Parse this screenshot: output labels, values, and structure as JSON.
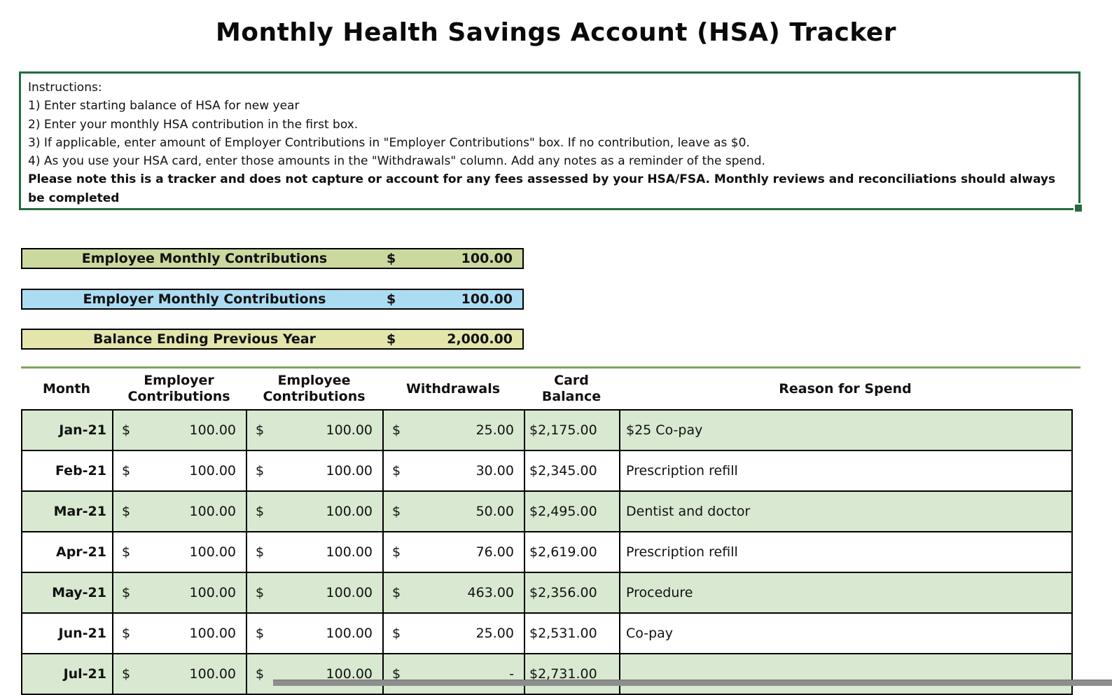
{
  "title": "Monthly Health Savings Account (HSA) Tracker",
  "instructions": {
    "lines": [
      "Instructions:",
      "1) Enter starting balance of HSA for new year",
      "2) Enter your monthly HSA contribution in the first box.",
      "3) If applicable, enter amount of Employer Contributions in \"Employer Contributions\" box. If no contribution, leave as $0.",
      "4) As you use your HSA card, enter those amounts in the \"Withdrawals\" column. Add any notes as a reminder of the spend."
    ],
    "note": "Please note this is a tracker and does not capture or account for any fees assessed by your HSA/FSA. Monthly reviews and reconciliations should always be completed"
  },
  "summary_boxes": [
    {
      "label": "Employee Monthly Contributions",
      "currency": "$",
      "value": "100.00",
      "color_key": "box_green"
    },
    {
      "label": "Employer Monthly Contributions",
      "currency": "$",
      "value": "100.00",
      "color_key": "box_blue"
    },
    {
      "label": "Balance Ending Previous Year",
      "currency": "$",
      "value": "2,000.00",
      "color_key": "box_yellow"
    }
  ],
  "table": {
    "headers": [
      "Month",
      "Employer\nContributions",
      "Employee\nContributions",
      "Withdrawals",
      "Card\nBalance",
      "Reason for Spend"
    ],
    "rows": [
      {
        "month": "Jan-21",
        "employer": "100.00",
        "employee": "100.00",
        "withdrawal": "25.00",
        "balance": "$2,175.00",
        "reason": "$25 Co-pay",
        "shaded": true
      },
      {
        "month": "Feb-21",
        "employer": "100.00",
        "employee": "100.00",
        "withdrawal": "30.00",
        "balance": "$2,345.00",
        "reason": "Prescription refill",
        "shaded": false
      },
      {
        "month": "Mar-21",
        "employer": "100.00",
        "employee": "100.00",
        "withdrawal": "50.00",
        "balance": "$2,495.00",
        "reason": "Dentist and doctor",
        "shaded": true
      },
      {
        "month": "Apr-21",
        "employer": "100.00",
        "employee": "100.00",
        "withdrawal": "76.00",
        "balance": "$2,619.00",
        "reason": "Prescription refill",
        "shaded": false
      },
      {
        "month": "May-21",
        "employer": "100.00",
        "employee": "100.00",
        "withdrawal": "463.00",
        "balance": "$2,356.00",
        "reason": "Procedure",
        "shaded": true
      },
      {
        "month": "Jun-21",
        "employer": "100.00",
        "employee": "100.00",
        "withdrawal": "25.00",
        "balance": "$2,531.00",
        "reason": "Co-pay",
        "shaded": false
      },
      {
        "month": "Jul-21",
        "employer": "100.00",
        "employee": "100.00",
        "withdrawal": "-",
        "balance": "$2,731.00",
        "reason": "",
        "shaded": true
      }
    ],
    "currency_symbol": "$"
  },
  "colors": {
    "box_green": "#cbd89e",
    "box_blue": "#abdcf2",
    "box_yellow": "#e4e5ab",
    "row_green": "#d9e8d0",
    "accent_line": "#7fa45f",
    "range_border": "#266b41",
    "grid_border": "#000000"
  }
}
